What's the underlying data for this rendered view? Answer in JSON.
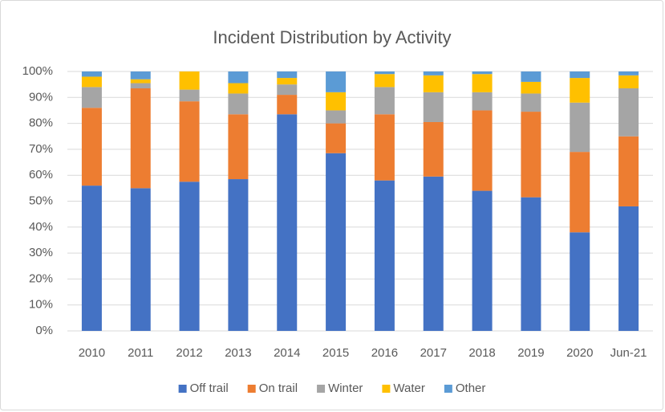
{
  "chart_data": {
    "type": "stacked_bar",
    "title": "Incident Distribution by Activity",
    "categories": [
      "2010",
      "2011",
      "2012",
      "2013",
      "2014",
      "2015",
      "2016",
      "2017",
      "2018",
      "2019",
      "2020",
      "Jun-21"
    ],
    "series": [
      {
        "name": "Off trail",
        "color": "#4472c4",
        "values": [
          56,
          55,
          57.5,
          58.5,
          83.5,
          68.5,
          58,
          59.5,
          54,
          51.5,
          38,
          48
        ]
      },
      {
        "name": "On trail",
        "color": "#ed7d31",
        "values": [
          30,
          38.5,
          31,
          25,
          7.5,
          11.5,
          25.5,
          21,
          31,
          33,
          31,
          27
        ]
      },
      {
        "name": "Winter",
        "color": "#a5a5a5",
        "values": [
          8,
          2,
          4.5,
          8,
          4,
          5,
          10.5,
          11.5,
          7,
          7,
          19,
          18.5
        ]
      },
      {
        "name": "Water",
        "color": "#ffc000",
        "values": [
          4,
          1.5,
          7,
          4,
          2.5,
          7,
          5,
          6.5,
          7,
          4.5,
          9.5,
          5
        ]
      },
      {
        "name": "Other",
        "color": "#5b9bd5",
        "values": [
          2,
          3,
          0,
          4.5,
          2.5,
          8,
          1,
          1.5,
          1,
          4,
          2.5,
          1.5
        ]
      }
    ],
    "ylim": [
      0,
      100
    ],
    "yticks": [
      {
        "value": 0,
        "label": "0%"
      },
      {
        "value": 10,
        "label": "10%"
      },
      {
        "value": 20,
        "label": "20%"
      },
      {
        "value": 30,
        "label": "30%"
      },
      {
        "value": 40,
        "label": "40%"
      },
      {
        "value": 50,
        "label": "50%"
      },
      {
        "value": 60,
        "label": "60%"
      },
      {
        "value": 70,
        "label": "70%"
      },
      {
        "value": 80,
        "label": "80%"
      },
      {
        "value": 90,
        "label": "90%"
      },
      {
        "value": 100,
        "label": "100%"
      }
    ],
    "grid": true,
    "legend": "bottom"
  }
}
